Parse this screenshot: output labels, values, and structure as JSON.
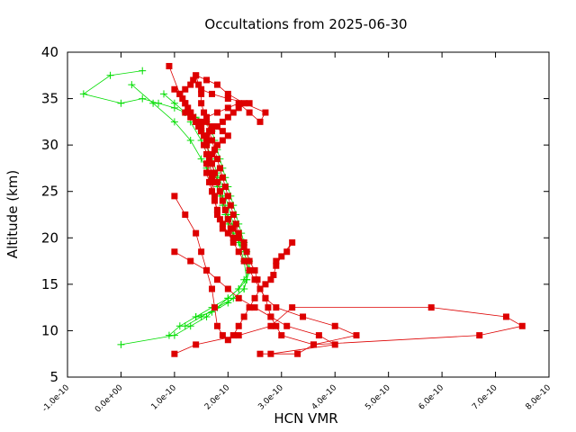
{
  "chart_data": {
    "type": "scatter",
    "title": "Occultations from 2025-06-30",
    "xlabel": "HCN VMR",
    "ylabel": "Altitude (km)",
    "xlim": [
      -1e-10,
      8e-10
    ],
    "ylim": [
      5,
      40
    ],
    "x_ticks": [
      -1e-10,
      0,
      1e-10,
      2e-10,
      3e-10,
      4e-10,
      5e-10,
      6e-10,
      7e-10,
      8e-10
    ],
    "x_tick_labels": [
      "-1.0e-10",
      "0.0e+00",
      "1.0e-10",
      "2.0e-10",
      "3.0e-10",
      "4.0e-10",
      "5.0e-10",
      "6.0e-10",
      "7.0e-10",
      "8.0e-10"
    ],
    "y_ticks": [
      5,
      10,
      15,
      20,
      25,
      30,
      35,
      40
    ],
    "y_tick_labels": [
      "5",
      "10",
      "15",
      "20",
      "25",
      "30",
      "35",
      "40"
    ],
    "grid": false,
    "legend": "none",
    "series": [
      {
        "color": "#00dd00",
        "marker": "plus",
        "profiles": [
          {
            "x": [
              0.0,
              1e-10,
              1.3e-10,
              1.6e-10,
              1.8e-10,
              2e-10,
              2.2e-10,
              2.3e-10,
              2.4e-10,
              2.4e-10,
              2.35e-10,
              2.3e-10,
              2.25e-10,
              2.2e-10,
              2.15e-10,
              2.1e-10,
              2.05e-10,
              2e-10,
              1.95e-10,
              1.9e-10,
              1.85e-10,
              1.8e-10,
              1.75e-10,
              1.7e-10,
              1.6e-10,
              1.4e-10,
              1.2e-10,
              1e-10,
              7e-11,
              4e-11,
              0.0,
              -7e-11,
              -2e-11,
              4e-11
            ],
            "y": [
              8.5,
              9.5,
              10.5,
              11.5,
              12.5,
              13.5,
              14.5,
              15.5,
              16.5,
              17.5,
              18.5,
              19.5,
              20.5,
              21.5,
              22.5,
              23.5,
              24.5,
              25.5,
              26.5,
              27.5,
              28.5,
              29.5,
              30.5,
              31.5,
              32.5,
              33.0,
              33.5,
              34.0,
              34.5,
              35.0,
              34.5,
              35.5,
              37.5,
              38.0
            ]
          },
          {
            "x": [
              9e-11,
              1.1e-10,
              1.4e-10,
              1.7e-10,
              2e-10,
              2.2e-10,
              2.35e-10,
              2.4e-10,
              2.35e-10,
              2.3e-10,
              2.2e-10,
              2.1e-10,
              2e-10,
              1.95e-10,
              1.9e-10,
              1.85e-10,
              1.8e-10,
              1.7e-10,
              1.6e-10,
              1.5e-10,
              1.3e-10,
              1e-10,
              6e-11,
              2e-11
            ],
            "y": [
              9.5,
              10.5,
              11.5,
              12.5,
              13.5,
              14.5,
              15.5,
              16.5,
              17.5,
              18.5,
              19.5,
              20.5,
              21.5,
              22.5,
              23.5,
              24.5,
              25.5,
              26.5,
              27.5,
              28.5,
              30.5,
              32.5,
              34.5,
              36.5
            ]
          },
          {
            "x": [
              1.2e-10,
              1.5e-10,
              1.8e-10,
              2.1e-10,
              2.3e-10,
              2.35e-10,
              2.3e-10,
              2.2e-10,
              2.1e-10,
              2e-10,
              1.9e-10,
              1.8e-10,
              1.7e-10,
              1.6e-10,
              1.5e-10,
              1.4e-10,
              1.2e-10,
              1e-10,
              8e-11
            ],
            "y": [
              10.5,
              11.5,
              12.5,
              13.5,
              14.5,
              15.5,
              17.5,
              19.5,
              21.5,
              23.5,
              25.5,
              27.0,
              28.5,
              30.0,
              31.5,
              32.5,
              33.5,
              34.5,
              35.5
            ]
          },
          {
            "x": [
              1.4e-10,
              1.7e-10,
              2e-10,
              2.3e-10,
              2.4e-10,
              2.3e-10,
              2.15e-10,
              2e-10,
              1.9e-10,
              1.8e-10,
              1.65e-10,
              1.5e-10,
              1.3e-10
            ],
            "y": [
              11.5,
              12.0,
              13.0,
              14.5,
              16.5,
              18.5,
              20.5,
              22.5,
              24.5,
              26.5,
              28.5,
              30.5,
              32.5
            ]
          }
        ]
      },
      {
        "color": "#dd0000",
        "marker": "square",
        "profiles": [
          {
            "x": [
              1e-10,
              1.4e-10,
              2.2e-10,
              2.8e-10,
              3.2e-10,
              5.8e-10,
              7.2e-10,
              7.5e-10,
              6.7e-10,
              3.6e-10,
              3e-10,
              2.9e-10,
              2.8e-10,
              2.75e-10,
              2.7e-10,
              2.6e-10,
              2.55e-10,
              2.5e-10,
              2.4e-10,
              2.35e-10,
              2.3e-10,
              2.2e-10,
              2.15e-10,
              2.1e-10,
              2.05e-10,
              2e-10,
              1.95e-10,
              1.9e-10,
              1.85e-10,
              1.8e-10,
              1.75e-10,
              1.7e-10,
              1.65e-10,
              1.6e-10,
              1.55e-10,
              1.5e-10,
              1.5e-10,
              1.45e-10,
              1.4e-10,
              1.35e-10,
              1.3e-10,
              1.2e-10,
              1.1e-10,
              9e-11
            ],
            "y": [
              7.5,
              8.5,
              9.5,
              10.5,
              12.5,
              12.5,
              11.5,
              10.5,
              9.5,
              8.5,
              9.5,
              10.5,
              11.5,
              12.5,
              13.5,
              14.5,
              15.5,
              16.5,
              17.5,
              18.5,
              19.5,
              20.5,
              21.5,
              22.5,
              23.5,
              24.5,
              25.5,
              26.5,
              27.5,
              28.5,
              29.5,
              30.5,
              31.5,
              32.5,
              33.5,
              34.5,
              35.5,
              36.5,
              37.5,
              37.0,
              36.5,
              36.0,
              35.5,
              38.5
            ]
          },
          {
            "x": [
              2.6e-10,
              3.3e-10,
              3.6e-10,
              4.4e-10,
              4e-10,
              3.4e-10,
              2.9e-10,
              2.7e-10,
              2.6e-10,
              2.5e-10,
              2.4e-10,
              2.3e-10,
              2.2e-10,
              2.1e-10,
              2e-10,
              1.9e-10,
              1.8e-10,
              1.75e-10,
              1.7e-10,
              1.65e-10,
              1.6e-10,
              1.5e-10,
              1.4e-10,
              1.3e-10,
              1.2e-10,
              1.1e-10
            ],
            "y": [
              7.5,
              7.5,
              8.5,
              9.5,
              10.5,
              11.5,
              12.5,
              13.5,
              14.5,
              15.5,
              16.5,
              17.5,
              18.5,
              19.5,
              20.5,
              21.5,
              22.5,
              24.5,
              26.5,
              28.5,
              30.5,
              31.5,
              32.5,
              33.5,
              34.5,
              35.5
            ]
          },
          {
            "x": [
              2.8e-10,
              4e-10,
              3.7e-10,
              3.1e-10,
              2.8e-10,
              2.5e-10,
              2.2e-10,
              2e-10,
              1.8e-10,
              1.6e-10,
              1.3e-10,
              1e-10
            ],
            "y": [
              7.5,
              8.5,
              9.5,
              10.5,
              11.5,
              12.5,
              13.5,
              14.5,
              15.5,
              16.5,
              17.5,
              18.5
            ]
          },
          {
            "x": [
              2.9e-10,
              3.1e-10,
              3.2e-10,
              3e-10,
              2.9e-10,
              2.85e-10,
              2.8e-10,
              2.7e-10,
              2.6e-10,
              2.5e-10,
              2.4e-10,
              2.3e-10,
              2.2e-10,
              2.1e-10,
              2e-10,
              1.9e-10,
              1.8e-10,
              1.75e-10,
              1.7e-10,
              1.6e-10,
              1.5e-10,
              1.4e-10,
              1.2e-10,
              1e-10
            ],
            "y": [
              17.5,
              18.5,
              19.5,
              18.0,
              17.0,
              16.0,
              15.5,
              15.0,
              14.5,
              13.5,
              12.5,
              11.5,
              10.5,
              9.5,
              9.0,
              9.5,
              10.5,
              12.5,
              14.5,
              16.5,
              18.5,
              20.5,
              22.5,
              24.5
            ]
          },
          {
            "x": [
              2.3e-10,
              2.2e-10,
              2.1e-10,
              2e-10,
              1.95e-10,
              1.9e-10,
              1.85e-10,
              1.8e-10,
              1.75e-10,
              1.7e-10,
              1.65e-10,
              1.6e-10,
              1.55e-10,
              1.5e-10,
              1.45e-10,
              1.4e-10,
              1.35e-10,
              1.3e-10,
              1.25e-10,
              1.2e-10,
              1.15e-10,
              1.1e-10,
              1e-10
            ],
            "y": [
              19.0,
              20.0,
              21.0,
              22.0,
              23.0,
              24.0,
              25.0,
              26.0,
              27.0,
              28.0,
              29.0,
              30.0,
              31.0,
              31.5,
              32.0,
              32.5,
              33.0,
              33.5,
              34.0,
              34.5,
              35.0,
              35.5,
              36.0
            ]
          },
          {
            "x": [
              2.1e-10,
              2.05e-10,
              2e-10,
              1.95e-10,
              1.9e-10,
              1.85e-10,
              1.8e-10,
              1.75e-10,
              1.7e-10,
              1.65e-10,
              1.6e-10,
              1.55e-10,
              1.5e-10,
              1.6e-10,
              1.8e-10,
              2e-10,
              2.2e-10,
              2.4e-10,
              2.6e-10,
              2.7e-10,
              2.3e-10,
              2e-10,
              1.8e-10,
              1.6e-10,
              1.4e-10
            ],
            "y": [
              20.0,
              21.0,
              22.0,
              23.0,
              24.0,
              25.0,
              26.0,
              27.0,
              28.0,
              29.0,
              30.0,
              31.0,
              32.0,
              33.0,
              33.5,
              34.0,
              34.5,
              33.5,
              32.5,
              33.5,
              34.5,
              35.5,
              36.5,
              37.0,
              37.5
            ]
          },
          {
            "x": [
              1.9e-10,
              1.85e-10,
              1.8e-10,
              1.75e-10,
              1.7e-10,
              1.7e-10,
              1.65e-10,
              1.6e-10,
              1.6e-10,
              1.55e-10,
              1.6e-10,
              1.7e-10,
              1.8e-10,
              1.9e-10,
              2e-10,
              2.1e-10,
              2.2e-10,
              2.4e-10,
              2e-10,
              1.7e-10,
              1.5e-10
            ],
            "y": [
              21.0,
              22.0,
              23.0,
              24.0,
              25.0,
              26.0,
              27.0,
              28.0,
              29.0,
              30.0,
              31.0,
              31.5,
              32.0,
              32.5,
              33.0,
              33.5,
              34.0,
              34.5,
              35.0,
              35.5,
              36.0
            ]
          },
          {
            "x": [
              1.8e-10,
              1.75e-10,
              1.7e-10,
              1.65e-10,
              1.6e-10,
              1.65e-10,
              1.7e-10,
              1.8e-10,
              1.9e-10,
              2e-10,
              1.9e-10,
              1.7e-10,
              1.5e-10,
              1.3e-10,
              1.2e-10
            ],
            "y": [
              23.0,
              24.0,
              25.0,
              26.0,
              27.0,
              28.0,
              29.0,
              30.0,
              30.5,
              31.0,
              31.5,
              32.0,
              32.5,
              33.0,
              33.5
            ]
          }
        ]
      }
    ]
  }
}
